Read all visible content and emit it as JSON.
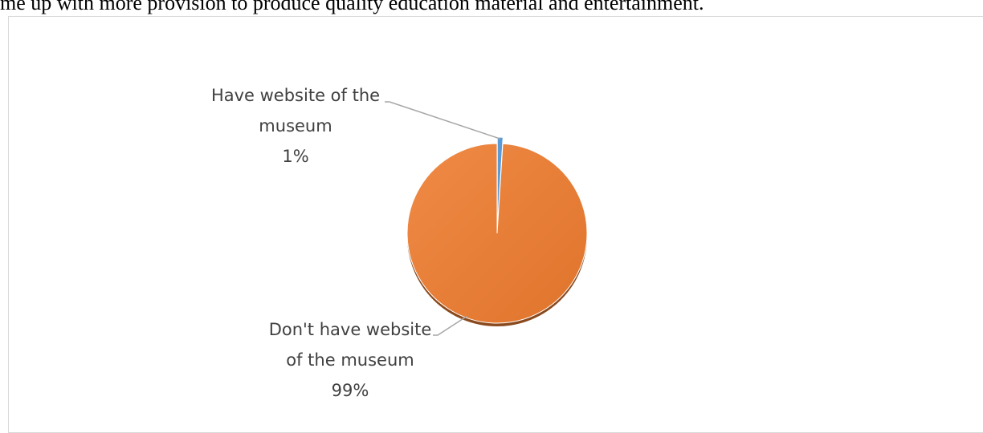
{
  "document": {
    "text_line": "me up with more provision to produce quality education material and entertainment."
  },
  "chart_data": {
    "type": "pie",
    "title": "",
    "slices": [
      {
        "label_lines": [
          "Have website of the",
          "museum"
        ],
        "percent_label": "1%",
        "value": 1,
        "color": "#5b9bd5"
      },
      {
        "label_lines": [
          "Don't have website",
          "of the museum"
        ],
        "percent_label": "99%",
        "value": 99,
        "color": "#ed7d31"
      }
    ],
    "leader_line_color": "#a6a6a6",
    "legend": "none"
  }
}
